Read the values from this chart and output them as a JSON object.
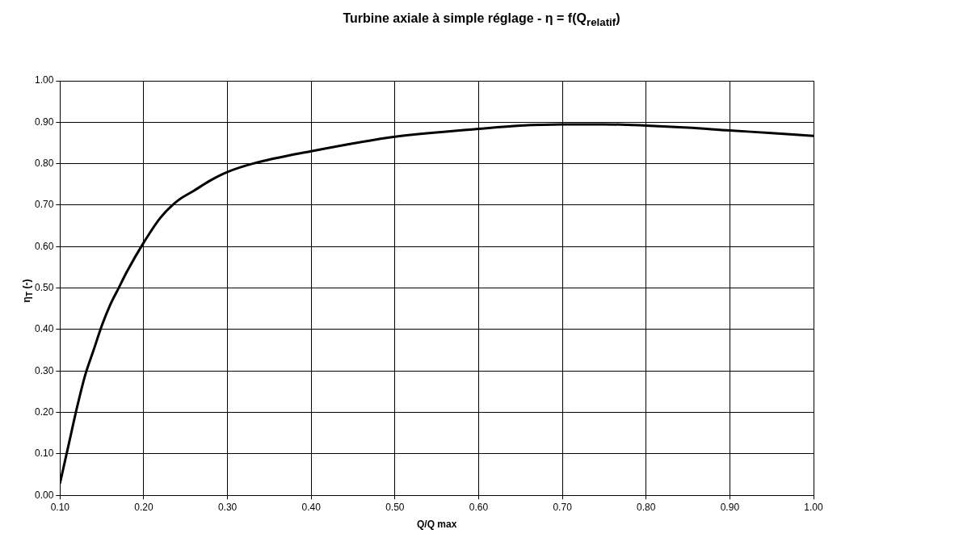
{
  "chart_data": {
    "type": "line",
    "title": "Turbine axiale à simple réglage - η = f(Q$_{relatif}$)",
    "xlabel": "Q/Q max",
    "ylabel": "η$_{T}$ (-)",
    "x": [
      0.1,
      0.11,
      0.12,
      0.13,
      0.14,
      0.15,
      0.16,
      0.17,
      0.18,
      0.2,
      0.22,
      0.24,
      0.26,
      0.28,
      0.3,
      0.33,
      0.4,
      0.5,
      0.6,
      0.65,
      0.7,
      0.75,
      0.8,
      0.85,
      0.9,
      0.95,
      1.0
    ],
    "series": [
      {
        "color": "#000000",
        "values": [
          0.03,
          0.12,
          0.21,
          0.29,
          0.35,
          0.41,
          0.46,
          0.5,
          0.54,
          0.61,
          0.67,
          0.71,
          0.735,
          0.76,
          0.78,
          0.8,
          0.83,
          0.865,
          0.884,
          0.892,
          0.895,
          0.895,
          0.892,
          0.887,
          0.88,
          0.874,
          0.867
        ]
      }
    ],
    "xlim": [
      0.1,
      1.0
    ],
    "xticks": [
      {
        "value": 0.1,
        "label": "0.10"
      },
      {
        "value": 0.2,
        "label": "0.20"
      },
      {
        "value": 0.3,
        "label": "0.30"
      },
      {
        "value": 0.4,
        "label": "0.40"
      },
      {
        "value": 0.5,
        "label": "0.50"
      },
      {
        "value": 0.6,
        "label": "0.60"
      },
      {
        "value": 0.7,
        "label": "0.70"
      },
      {
        "value": 0.8,
        "label": "0.80"
      },
      {
        "value": 0.9,
        "label": "0.90"
      },
      {
        "value": 1.0,
        "label": "1.00"
      }
    ],
    "ylim": [
      0,
      1
    ],
    "yticks": [
      {
        "value": 0,
        "label": "0.00"
      },
      {
        "value": 0.1,
        "label": "0.10"
      },
      {
        "value": 0.2,
        "label": "0.20"
      },
      {
        "value": 0.3,
        "label": "0.30"
      },
      {
        "value": 0.4,
        "label": "0.40"
      },
      {
        "value": 0.5,
        "label": "0.50"
      },
      {
        "value": 0.6,
        "label": "0.60"
      },
      {
        "value": 0.7,
        "label": "0.70"
      },
      {
        "value": 0.8,
        "label": "0.80"
      },
      {
        "value": 0.9,
        "label": "0.90"
      },
      {
        "value": 1.0,
        "label": "1.00"
      }
    ],
    "grid": true,
    "legend": false,
    "marker": "none",
    "line_style": "solid"
  }
}
